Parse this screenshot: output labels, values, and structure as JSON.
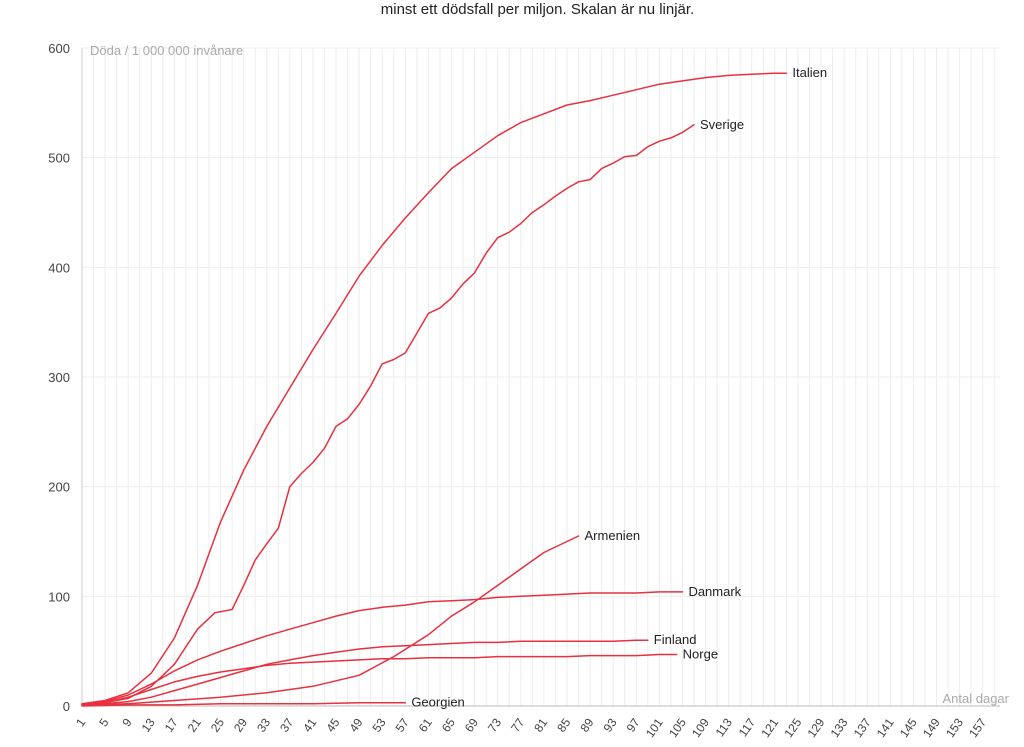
{
  "chart_data": {
    "type": "line",
    "subtitle": "minst ett dödsfall per miljon. Skalan är nu linjär.",
    "ylabel": "Döda / 1 000 000 invånare",
    "xlabel": "Antal dagar",
    "ylim": [
      0,
      600
    ],
    "xlim": [
      1,
      160
    ],
    "yticks": [
      0,
      100,
      200,
      300,
      400,
      500,
      600
    ],
    "xticks": [
      1,
      5,
      9,
      13,
      17,
      21,
      25,
      29,
      33,
      37,
      41,
      45,
      49,
      53,
      57,
      61,
      65,
      69,
      73,
      77,
      81,
      85,
      89,
      93,
      97,
      101,
      105,
      109,
      113,
      117,
      121,
      125,
      129,
      133,
      137,
      141,
      145,
      149,
      153,
      157
    ],
    "line_color": "#e8303f",
    "series": [
      {
        "name": "Italien",
        "x": [
          1,
          5,
          9,
          13,
          17,
          21,
          25,
          29,
          33,
          37,
          41,
          45,
          49,
          53,
          57,
          61,
          65,
          69,
          73,
          77,
          81,
          85,
          89,
          93,
          97,
          101,
          105,
          109,
          113,
          117,
          121,
          123
        ],
        "y": [
          2,
          5,
          12,
          30,
          62,
          110,
          168,
          215,
          255,
          290,
          325,
          358,
          392,
          420,
          445,
          468,
          490,
          505,
          520,
          532,
          540,
          548,
          552,
          557,
          562,
          567,
          570,
          573,
          575,
          576,
          577,
          577
        ]
      },
      {
        "name": "Sverige",
        "x": [
          1,
          5,
          9,
          13,
          17,
          21,
          24,
          27,
          29,
          31,
          33,
          35,
          37,
          39,
          41,
          43,
          45,
          47,
          49,
          51,
          53,
          55,
          57,
          59,
          61,
          63,
          65,
          67,
          69,
          71,
          73,
          75,
          77,
          79,
          81,
          83,
          85,
          87,
          89,
          91,
          93,
          95,
          97,
          99,
          101,
          103,
          105,
          107
        ],
        "y": [
          1,
          3,
          7,
          18,
          38,
          70,
          85,
          88,
          110,
          133,
          148,
          162,
          200,
          212,
          222,
          235,
          255,
          262,
          275,
          292,
          312,
          316,
          322,
          340,
          358,
          363,
          372,
          385,
          395,
          413,
          427,
          432,
          440,
          450,
          457,
          465,
          472,
          478,
          480,
          490,
          495,
          501,
          502,
          510,
          515,
          518,
          523,
          530
        ]
      },
      {
        "name": "Armenien",
        "x": [
          1,
          9,
          17,
          25,
          33,
          41,
          49,
          55,
          61,
          65,
          69,
          73,
          77,
          81,
          85,
          87
        ],
        "y": [
          1,
          2,
          5,
          8,
          12,
          18,
          28,
          45,
          65,
          82,
          95,
          110,
          125,
          140,
          150,
          155
        ]
      },
      {
        "name": "Danmark",
        "x": [
          1,
          5,
          9,
          13,
          17,
          21,
          25,
          29,
          33,
          37,
          41,
          45,
          49,
          53,
          57,
          61,
          65,
          69,
          73,
          77,
          81,
          85,
          89,
          93,
          97,
          101,
          105
        ],
        "y": [
          1,
          4,
          10,
          20,
          32,
          42,
          50,
          57,
          64,
          70,
          76,
          82,
          87,
          90,
          92,
          95,
          96,
          97,
          99,
          100,
          101,
          102,
          103,
          103,
          103,
          104,
          104
        ]
      },
      {
        "name": "Finland",
        "x": [
          1,
          5,
          9,
          13,
          17,
          21,
          25,
          29,
          33,
          37,
          41,
          45,
          49,
          53,
          57,
          61,
          65,
          69,
          73,
          77,
          81,
          85,
          89,
          93,
          97,
          99
        ],
        "y": [
          1,
          2,
          4,
          8,
          14,
          20,
          26,
          32,
          38,
          42,
          46,
          49,
          52,
          54,
          55,
          56,
          57,
          58,
          58,
          59,
          59,
          59,
          59,
          59,
          60,
          60
        ]
      },
      {
        "name": "Norge",
        "x": [
          1,
          5,
          9,
          13,
          17,
          21,
          25,
          29,
          33,
          37,
          41,
          45,
          49,
          53,
          57,
          61,
          65,
          69,
          73,
          77,
          81,
          85,
          89,
          93,
          97,
          101,
          104
        ],
        "y": [
          1,
          3,
          8,
          15,
          22,
          27,
          31,
          34,
          37,
          39,
          40,
          41,
          42,
          43,
          43,
          44,
          44,
          44,
          45,
          45,
          45,
          45,
          46,
          46,
          46,
          47,
          47
        ]
      },
      {
        "name": "Georgien",
        "x": [
          1,
          9,
          17,
          25,
          33,
          41,
          49,
          57
        ],
        "y": [
          0,
          1,
          1,
          2,
          2,
          2,
          3,
          3
        ]
      }
    ]
  }
}
